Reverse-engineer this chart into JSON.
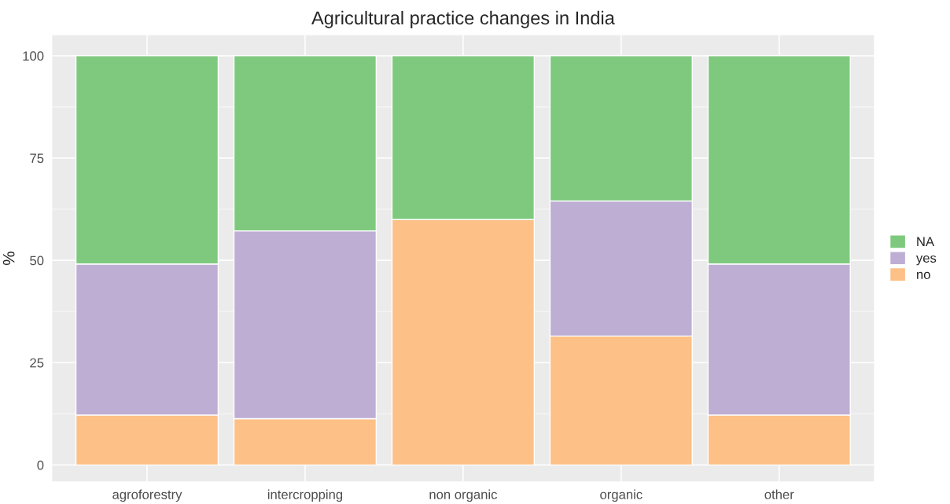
{
  "chart_data": {
    "type": "bar",
    "title": "Agricultural practice changes in India",
    "ylabel": "%",
    "categories": [
      "agroforestry",
      "intercropping",
      "non organic",
      "organic",
      "other"
    ],
    "stacked": true,
    "series": [
      {
        "name": "no",
        "color": "#fdc086",
        "values": [
          12.2,
          11.3,
          60,
          31.5,
          12.2
        ]
      },
      {
        "name": "yes",
        "color": "#beaed4",
        "values": [
          36.9,
          45.9,
          0,
          33,
          36.9
        ]
      },
      {
        "name": "NA",
        "color": "#7fc97f",
        "values": [
          50.9,
          42.8,
          40,
          35.5,
          50.9
        ]
      }
    ],
    "ylim": [
      -4,
      105
    ],
    "yticks": [
      0,
      25,
      50,
      75,
      100
    ],
    "grid": true,
    "legend": "right"
  }
}
